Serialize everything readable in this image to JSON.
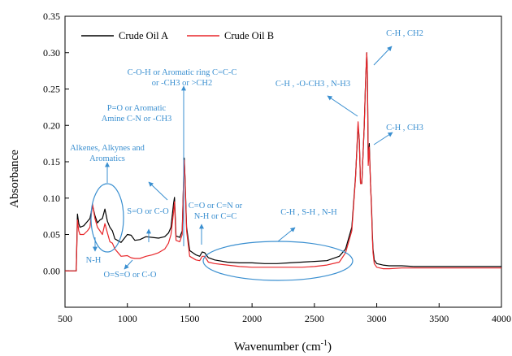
{
  "colors": {
    "series_a": "#000000",
    "series_b": "#e8262a",
    "annotation": "#3a8fd0"
  },
  "chart_data": {
    "type": "line",
    "xlabel_main": "Wavenumber (cm",
    "xlabel_sup": "-1",
    "xlabel_end": ")",
    "ylabel": "Absorbance",
    "xlim": [
      500,
      4000
    ],
    "ylim": [
      -0.05,
      0.35
    ],
    "x_ticks": [
      "500",
      "1000",
      "1500",
      "2000",
      "2500",
      "3000",
      "3500",
      "4000"
    ],
    "y_ticks": [
      "0.00",
      "0.05",
      "0.10",
      "0.15",
      "0.20",
      "0.25",
      "0.30",
      "0.35"
    ],
    "legend_position": "top-left",
    "grid": false,
    "series": [
      {
        "name": "Crude Oil A",
        "x": [
          500,
          590,
          600,
          610,
          620,
          650,
          680,
          700,
          720,
          740,
          760,
          780,
          800,
          820,
          840,
          860,
          880,
          900,
          950,
          1000,
          1030,
          1060,
          1100,
          1150,
          1200,
          1250,
          1300,
          1330,
          1350,
          1370,
          1378,
          1390,
          1420,
          1440,
          1450,
          1456,
          1462,
          1475,
          1500,
          1550,
          1580,
          1600,
          1620,
          1650,
          1700,
          1800,
          1900,
          2000,
          2100,
          2200,
          2300,
          2400,
          2500,
          2600,
          2700,
          2750,
          2800,
          2830,
          2850,
          2860,
          2870,
          2880,
          2900,
          2910,
          2920,
          2925,
          2932,
          2940,
          2950,
          2955,
          2960,
          2965,
          2970,
          2980,
          3000,
          3050,
          3100,
          3200,
          3300,
          3400,
          3500,
          3600,
          3700,
          3800,
          3900,
          4000
        ],
        "y": [
          0,
          0,
          0.078,
          0.065,
          0.06,
          0.062,
          0.068,
          0.072,
          0.09,
          0.076,
          0.066,
          0.07,
          0.072,
          0.085,
          0.068,
          0.06,
          0.055,
          0.044,
          0.039,
          0.05,
          0.049,
          0.042,
          0.043,
          0.047,
          0.046,
          0.045,
          0.047,
          0.052,
          0.06,
          0.092,
          0.101,
          0.048,
          0.046,
          0.055,
          0.12,
          0.155,
          0.13,
          0.06,
          0.028,
          0.022,
          0.02,
          0.026,
          0.025,
          0.018,
          0.015,
          0.012,
          0.011,
          0.011,
          0.01,
          0.01,
          0.011,
          0.012,
          0.013,
          0.014,
          0.02,
          0.03,
          0.06,
          0.13,
          0.2,
          0.18,
          0.12,
          0.12,
          0.2,
          0.26,
          0.3,
          0.27,
          0.15,
          0.175,
          0.12,
          0.1,
          0.08,
          0.05,
          0.03,
          0.015,
          0.01,
          0.008,
          0.007,
          0.007,
          0.006,
          0.006,
          0.006,
          0.006,
          0.006,
          0.006,
          0.006,
          0.006
        ]
      },
      {
        "name": "Crude Oil B",
        "x": [
          500,
          590,
          600,
          610,
          620,
          650,
          680,
          700,
          720,
          740,
          760,
          780,
          800,
          820,
          840,
          860,
          880,
          900,
          950,
          1000,
          1030,
          1060,
          1100,
          1150,
          1200,
          1250,
          1300,
          1330,
          1350,
          1370,
          1378,
          1390,
          1420,
          1440,
          1450,
          1456,
          1462,
          1475,
          1500,
          1550,
          1580,
          1600,
          1620,
          1650,
          1700,
          1800,
          1900,
          2000,
          2100,
          2200,
          2300,
          2400,
          2500,
          2600,
          2700,
          2750,
          2800,
          2830,
          2850,
          2860,
          2870,
          2880,
          2900,
          2910,
          2920,
          2925,
          2932,
          2940,
          2950,
          2955,
          2960,
          2965,
          2970,
          2980,
          3000,
          3050,
          3100,
          3200,
          3300,
          3400,
          3500,
          3600,
          3700,
          3800,
          3900,
          4000
        ],
        "y": [
          0,
          0,
          0.07,
          0.055,
          0.05,
          0.05,
          0.055,
          0.06,
          0.092,
          0.072,
          0.06,
          0.055,
          0.05,
          0.065,
          0.052,
          0.04,
          0.038,
          0.03,
          0.02,
          0.021,
          0.018,
          0.017,
          0.017,
          0.02,
          0.022,
          0.025,
          0.03,
          0.038,
          0.05,
          0.08,
          0.095,
          0.042,
          0.04,
          0.05,
          0.12,
          0.152,
          0.128,
          0.055,
          0.02,
          0.015,
          0.014,
          0.02,
          0.02,
          0.012,
          0.01,
          0.008,
          0.006,
          0.005,
          0.005,
          0.005,
          0.005,
          0.005,
          0.006,
          0.008,
          0.012,
          0.025,
          0.055,
          0.128,
          0.205,
          0.18,
          0.12,
          0.12,
          0.2,
          0.26,
          0.3,
          0.27,
          0.145,
          0.17,
          0.12,
          0.098,
          0.075,
          0.045,
          0.025,
          0.01,
          0.005,
          0.003,
          0.003,
          0.004,
          0.004,
          0.004,
          0.004,
          0.004,
          0.004,
          0.004,
          0.004,
          0.004
        ]
      }
    ],
    "annotations": [
      {
        "lines": [
          "C-H , CH2"
        ]
      },
      {
        "lines": [
          "C-H , -O-CH3 , N-H3"
        ]
      },
      {
        "lines": [
          "C-H , CH3"
        ]
      },
      {
        "lines": [
          "C-O-H or Aromatic ring C=C-C",
          "or -CH3 or >CH2"
        ]
      },
      {
        "lines": [
          "P=O or Aromatic",
          "Amine C-N or -CH3"
        ]
      },
      {
        "lines": [
          "Alkenes, Alkynes and",
          "Aromatics"
        ]
      },
      {
        "lines": [
          "S=O or C-O"
        ]
      },
      {
        "lines": [
          "N-H"
        ]
      },
      {
        "lines": [
          "O=S=O or C-O"
        ]
      },
      {
        "lines": [
          "C=O or C=N or",
          "N-H or C=C"
        ]
      },
      {
        "lines": [
          "C-H , S-H , N-H"
        ]
      }
    ]
  }
}
